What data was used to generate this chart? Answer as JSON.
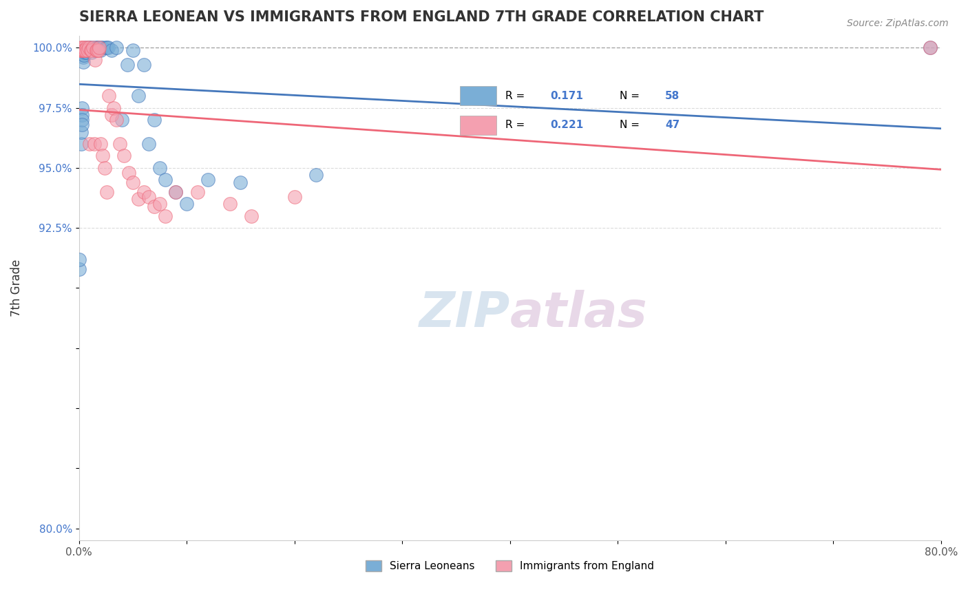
{
  "title": "SIERRA LEONEAN VS IMMIGRANTS FROM ENGLAND 7TH GRADE CORRELATION CHART",
  "source_text": "Source: ZipAtlas.com",
  "xlabel": "",
  "ylabel": "7th Grade",
  "xlim": [
    0.0,
    0.8
  ],
  "ylim": [
    0.795,
    1.005
  ],
  "xticks": [
    0.0,
    0.1,
    0.2,
    0.3,
    0.4,
    0.5,
    0.6,
    0.7,
    0.8
  ],
  "xticklabels": [
    "0.0%",
    "",
    "",
    "",
    "",
    "",
    "",
    "",
    "80.0%"
  ],
  "yticks": [
    0.8,
    0.825,
    0.85,
    0.875,
    0.9,
    0.925,
    0.95,
    0.975,
    1.0
  ],
  "yticklabels": [
    "80.0%",
    "",
    "",
    "",
    "",
    "92.5%",
    "95.0%",
    "97.5%",
    "100.0%"
  ],
  "legend_r1": "0.171",
  "legend_n1": "58",
  "legend_r2": "0.221",
  "legend_n2": "47",
  "blue_color": "#7aaed6",
  "pink_color": "#f4a0b0",
  "blue_line_color": "#4477bb",
  "pink_line_color": "#ee6677",
  "blue_scatter_x": [
    0.0,
    0.0,
    0.002,
    0.002,
    0.003,
    0.003,
    0.003,
    0.003,
    0.004,
    0.004,
    0.004,
    0.005,
    0.005,
    0.005,
    0.005,
    0.006,
    0.006,
    0.006,
    0.007,
    0.007,
    0.007,
    0.008,
    0.008,
    0.009,
    0.009,
    0.01,
    0.01,
    0.012,
    0.012,
    0.013,
    0.014,
    0.014,
    0.016,
    0.017,
    0.018,
    0.02,
    0.021,
    0.022,
    0.025,
    0.026,
    0.027,
    0.03,
    0.035,
    0.04,
    0.045,
    0.05,
    0.055,
    0.06,
    0.065,
    0.07,
    0.075,
    0.08,
    0.09,
    0.1,
    0.12,
    0.15,
    0.22,
    0.79
  ],
  "blue_scatter_y": [
    0.908,
    0.912,
    0.96,
    0.965,
    0.975,
    0.972,
    0.97,
    0.968,
    0.997,
    0.996,
    0.994,
    0.999,
    0.999,
    0.998,
    0.997,
    0.998,
    0.999,
    1.0,
    0.999,
    0.999,
    0.998,
    0.999,
    0.999,
    0.999,
    1.0,
    0.999,
    1.0,
    0.999,
    0.998,
    1.0,
    0.999,
    0.999,
    1.0,
    1.0,
    1.0,
    0.999,
    1.0,
    1.0,
    1.0,
    1.0,
    1.0,
    0.999,
    1.0,
    0.97,
    0.993,
    0.999,
    0.98,
    0.993,
    0.96,
    0.97,
    0.95,
    0.945,
    0.94,
    0.935,
    0.945,
    0.944,
    0.947,
    1.0
  ],
  "pink_scatter_x": [
    0.001,
    0.002,
    0.002,
    0.003,
    0.003,
    0.004,
    0.004,
    0.005,
    0.005,
    0.006,
    0.007,
    0.008,
    0.009,
    0.01,
    0.011,
    0.012,
    0.013,
    0.014,
    0.015,
    0.016,
    0.017,
    0.018,
    0.019,
    0.02,
    0.022,
    0.024,
    0.026,
    0.028,
    0.03,
    0.032,
    0.035,
    0.038,
    0.042,
    0.046,
    0.05,
    0.055,
    0.06,
    0.065,
    0.07,
    0.075,
    0.08,
    0.09,
    0.11,
    0.14,
    0.16,
    0.2,
    0.79
  ],
  "pink_scatter_y": [
    0.999,
    0.999,
    1.0,
    0.999,
    1.0,
    0.999,
    0.999,
    1.0,
    0.999,
    0.999,
    1.0,
    0.999,
    1.0,
    0.96,
    0.999,
    0.999,
    1.0,
    0.96,
    0.995,
    0.999,
    0.999,
    0.999,
    1.0,
    0.96,
    0.955,
    0.95,
    0.94,
    0.98,
    0.972,
    0.975,
    0.97,
    0.96,
    0.955,
    0.948,
    0.944,
    0.937,
    0.94,
    0.938,
    0.934,
    0.935,
    0.93,
    0.94,
    0.94,
    0.935,
    0.93,
    0.938,
    1.0
  ]
}
